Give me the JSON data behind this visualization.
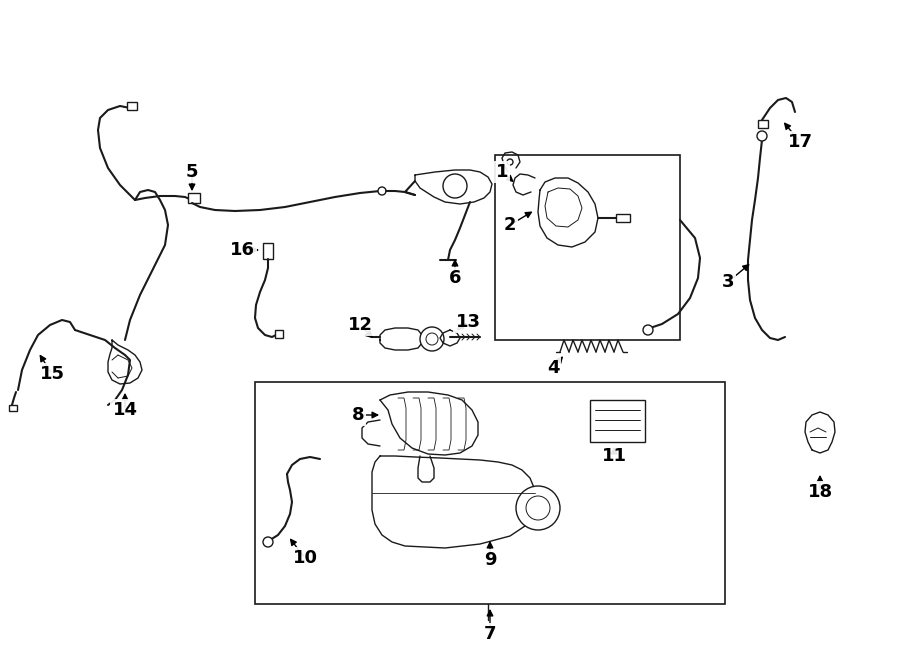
{
  "background_color": "#ffffff",
  "figsize": [
    9.0,
    6.61
  ],
  "dpi": 100,
  "image_data": ""
}
